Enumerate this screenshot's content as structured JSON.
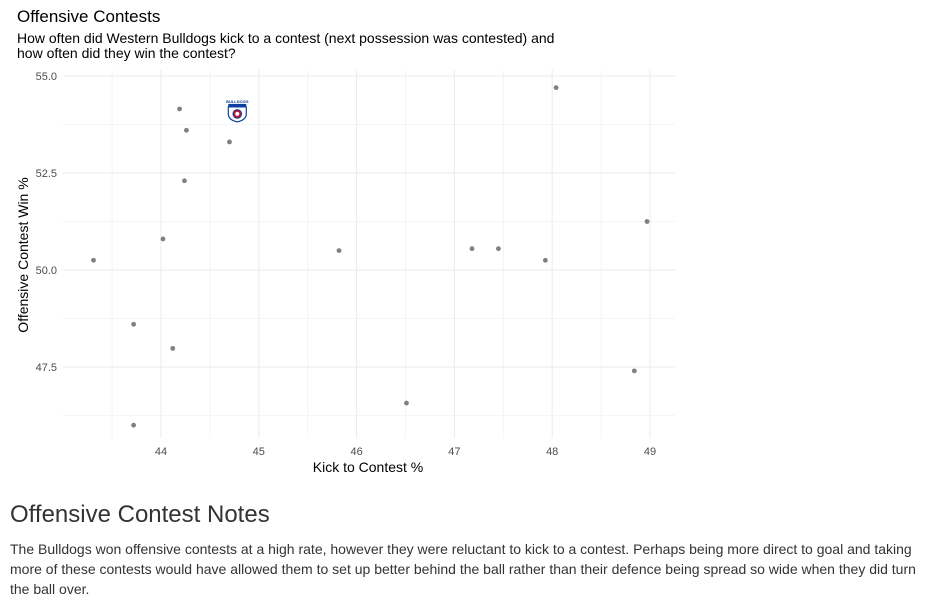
{
  "chart_data": {
    "type": "scatter",
    "title": "Offensive Contests",
    "subtitle": "How often did Western Bulldogs kick to a contest (next possession was contested) and how often did they win the contest?",
    "xlabel": "Kick to Contest %",
    "ylabel": "Offensive Contest Win %",
    "xlim": [
      43.0,
      49.25
    ],
    "ylim": [
      45.65,
      55.15
    ],
    "x_ticks": [
      "44",
      "45",
      "46",
      "47",
      "48",
      "49"
    ],
    "y_ticks": [
      "47.5",
      "50.0",
      "52.5",
      "55.0"
    ],
    "grid": true,
    "point_color": "#808080",
    "points": [
      {
        "x": 43.31,
        "y": 50.25
      },
      {
        "x": 43.72,
        "y": 48.6
      },
      {
        "x": 43.72,
        "y": 46.0
      },
      {
        "x": 44.02,
        "y": 50.8
      },
      {
        "x": 44.12,
        "y": 47.98
      },
      {
        "x": 44.19,
        "y": 54.15
      },
      {
        "x": 44.24,
        "y": 52.3
      },
      {
        "x": 44.26,
        "y": 53.6
      },
      {
        "x": 44.7,
        "y": 53.3
      },
      {
        "x": 45.82,
        "y": 50.5
      },
      {
        "x": 46.51,
        "y": 46.57
      },
      {
        "x": 47.18,
        "y": 50.55
      },
      {
        "x": 47.45,
        "y": 50.55
      },
      {
        "x": 47.93,
        "y": 50.25
      },
      {
        "x": 48.04,
        "y": 54.7
      },
      {
        "x": 48.84,
        "y": 47.4
      },
      {
        "x": 48.97,
        "y": 51.25
      }
    ],
    "highlight": {
      "x": 44.78,
      "y": 54.1,
      "icon": "western-bulldogs-logo-icon",
      "label": "BULLDOGS"
    }
  },
  "notes": {
    "heading": "Offensive Contest Notes",
    "body": "The Bulldogs won offensive contests at a high rate, however they were reluctant to kick to a contest. Perhaps being more direct to goal and taking more of these contests would have allowed them to set up better behind the ball rather than their defence being spread so wide when they did turn the ball over."
  }
}
